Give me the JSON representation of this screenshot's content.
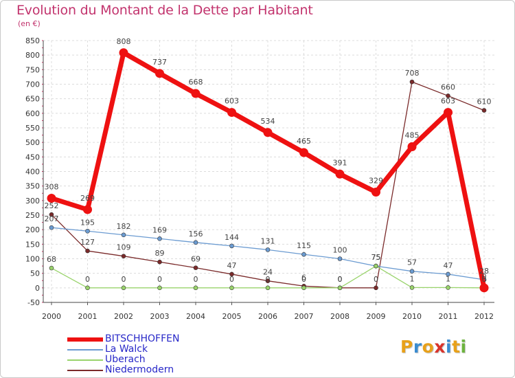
{
  "title": "Evolution du Montant de la Dette par Habitant",
  "unit": "(en €)",
  "logo_text": "Proxiti",
  "logo_colors": [
    "#e8a11a",
    "#3a8cd1",
    "#e8a11a",
    "#d9332b",
    "#3a8cd1",
    "#e8a11a",
    "#6db33f"
  ],
  "chart_data": {
    "type": "line",
    "x": [
      "2000",
      "2001",
      "2002",
      "2003",
      "2004",
      "2005",
      "2006",
      "2007",
      "2008",
      "2009",
      "2010",
      "2011",
      "2012"
    ],
    "ylim": [
      -50,
      850
    ],
    "yticks": [
      -50,
      0,
      50,
      100,
      150,
      200,
      250,
      300,
      350,
      400,
      450,
      500,
      550,
      600,
      650,
      700,
      750,
      800,
      850
    ],
    "grid": true,
    "legend_position": "bottom-left",
    "series": [
      {
        "name": "BITSCHHOFFEN",
        "color": "#ee1111",
        "values": [
          308,
          269,
          808,
          737,
          668,
          603,
          534,
          465,
          391,
          329,
          485,
          603,
          0
        ],
        "labels": [
          "308",
          "269",
          "808",
          "737",
          "668",
          "603",
          "534",
          "465",
          "391",
          "329",
          "485",
          "603",
          "0"
        ]
      },
      {
        "name": "La Walck",
        "color": "#6b9bd1",
        "values": [
          207,
          195,
          182,
          169,
          156,
          144,
          131,
          115,
          100,
          75,
          57,
          47,
          28
        ],
        "labels": [
          "207",
          "195",
          "182",
          "169",
          "156",
          "144",
          "131",
          "115",
          "100",
          "75",
          "57",
          "47",
          "28"
        ]
      },
      {
        "name": "Uberach",
        "color": "#99d36b",
        "values": [
          68,
          0,
          0,
          0,
          0,
          0,
          0,
          0,
          0,
          75,
          1,
          1,
          0
        ],
        "labels": [
          "68",
          "0",
          "0",
          "0",
          "0",
          "0",
          "0",
          "0",
          "0",
          "75",
          "1",
          "1",
          "0"
        ]
      },
      {
        "name": "Niedermodern",
        "color": "#7a2a2a",
        "values": [
          252,
          127,
          109,
          89,
          69,
          47,
          24,
          6,
          0,
          0,
          708,
          660,
          610
        ],
        "labels": [
          "252",
          "127",
          "109",
          "89",
          "69",
          "47",
          "24",
          "6",
          "0",
          "0",
          "708",
          "660",
          "610"
        ]
      }
    ]
  }
}
